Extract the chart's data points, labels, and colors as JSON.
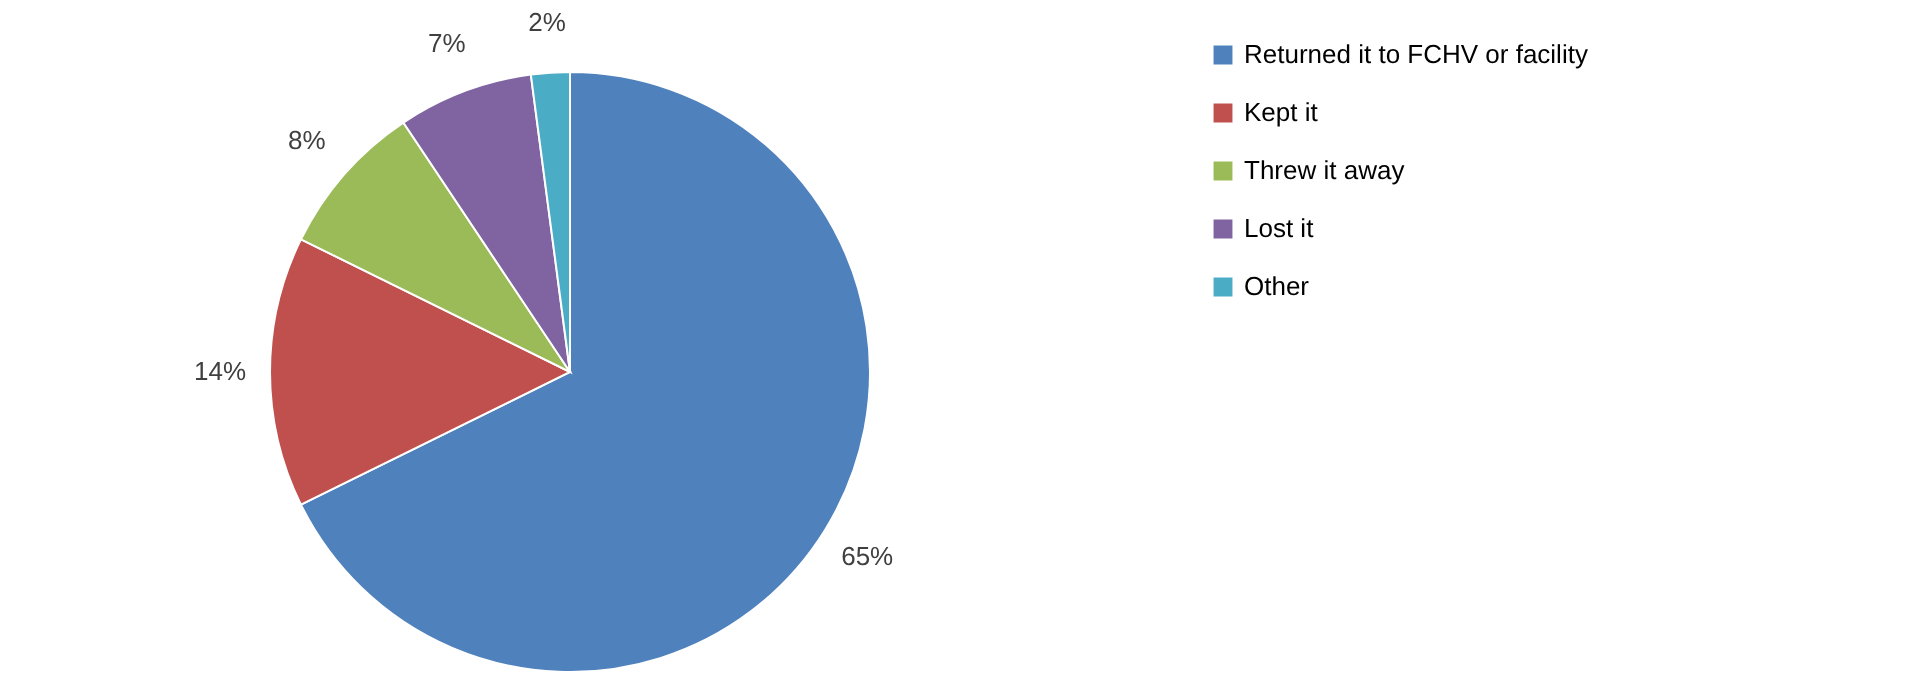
{
  "chart_data": {
    "type": "pie",
    "categories": [
      "Returned it to FCHV or facility",
      "Kept it",
      "Threw it away",
      "Lost it",
      "Other"
    ],
    "values": [
      65,
      14,
      8,
      7,
      2
    ],
    "value_labels": [
      "65%",
      "14%",
      "8%",
      "7%",
      "2%"
    ],
    "colors": [
      "#4f81bd",
      "#c0504d",
      "#9bbb59",
      "#8064a2",
      "#4bacc6"
    ],
    "legend": "top right"
  }
}
